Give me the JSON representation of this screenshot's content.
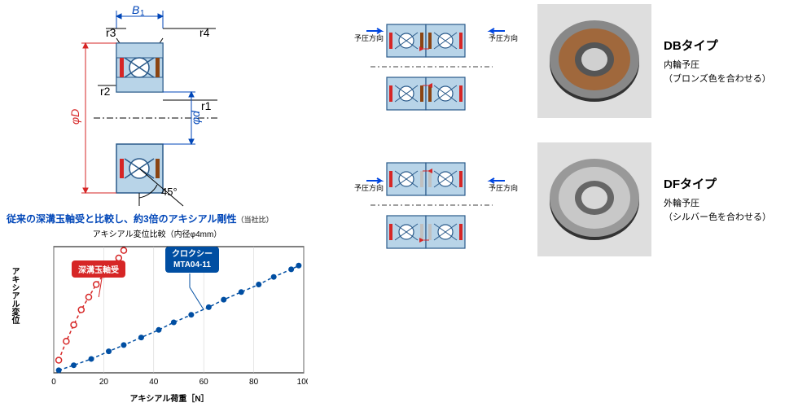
{
  "tech_drawing": {
    "labels": {
      "B1": "B",
      "r1": "r1",
      "r2": "r2",
      "r3": "r3",
      "r4": "r4",
      "phiD": "φD",
      "phid": "φd",
      "angle": "45°",
      "B1_suffix": "1"
    },
    "colors": {
      "line": "#000",
      "dim": "#0046b8",
      "red": "#d62626",
      "bearing_fill": "#b8d4e8",
      "bearing_stroke": "#2a5a8a",
      "seal": "#8b4513"
    }
  },
  "chart": {
    "title": "従来の深溝玉軸受と比較し、約3倍のアキシアル剛性",
    "title_sub": "（当社比）",
    "subtitle": "アキシアル変位比較（内径φ4mm）",
    "ylabel": "アキシアル変位",
    "xlabel": "アキシアル荷重［N］",
    "legend_red": "深溝玉軸受",
    "legend_blue_l1": "クロクシー",
    "legend_blue_l2": "MTA04-11",
    "xlim": [
      0,
      100
    ],
    "ylim": [
      0,
      1
    ],
    "xticks": [
      0,
      20,
      40,
      60,
      80,
      100
    ],
    "series_red": {
      "color": "#d62626",
      "marker": "circle-open",
      "x": [
        2,
        5,
        8,
        11,
        14,
        17,
        20,
        23,
        26,
        28
      ],
      "y": [
        0.1,
        0.25,
        0.38,
        0.5,
        0.6,
        0.7,
        0.78,
        0.85,
        0.91,
        0.97
      ]
    },
    "series_blue": {
      "color": "#004ea2",
      "marker": "circle-filled",
      "x": [
        2,
        8,
        15,
        22,
        28,
        35,
        42,
        48,
        55,
        62,
        68,
        75,
        82,
        88,
        95,
        98
      ],
      "y": [
        0.02,
        0.06,
        0.11,
        0.17,
        0.22,
        0.28,
        0.34,
        0.4,
        0.46,
        0.52,
        0.58,
        0.64,
        0.7,
        0.76,
        0.82,
        0.85
      ]
    },
    "grid_color": "#aaa",
    "bg": "#fff"
  },
  "types": {
    "db": {
      "name": "DBタイプ",
      "desc1": "内輪予圧",
      "desc2": "（ブロンズ色を合わせる）",
      "preload": "予圧方向",
      "seal_color": "#8b4513",
      "photo_ring": "#a0683c"
    },
    "df": {
      "name": "DFタイプ",
      "desc1": "外輪予圧",
      "desc2": "（シルバー色を合わせる）",
      "preload": "予圧方向",
      "seal_color": "#c0c0c0",
      "photo_ring": "#bababa"
    }
  },
  "colors": {
    "bearing_fill": "#b8d4e8",
    "bearing_stroke": "#2a5a8a",
    "black": "#000",
    "arrow_blue": "#0046e0"
  }
}
